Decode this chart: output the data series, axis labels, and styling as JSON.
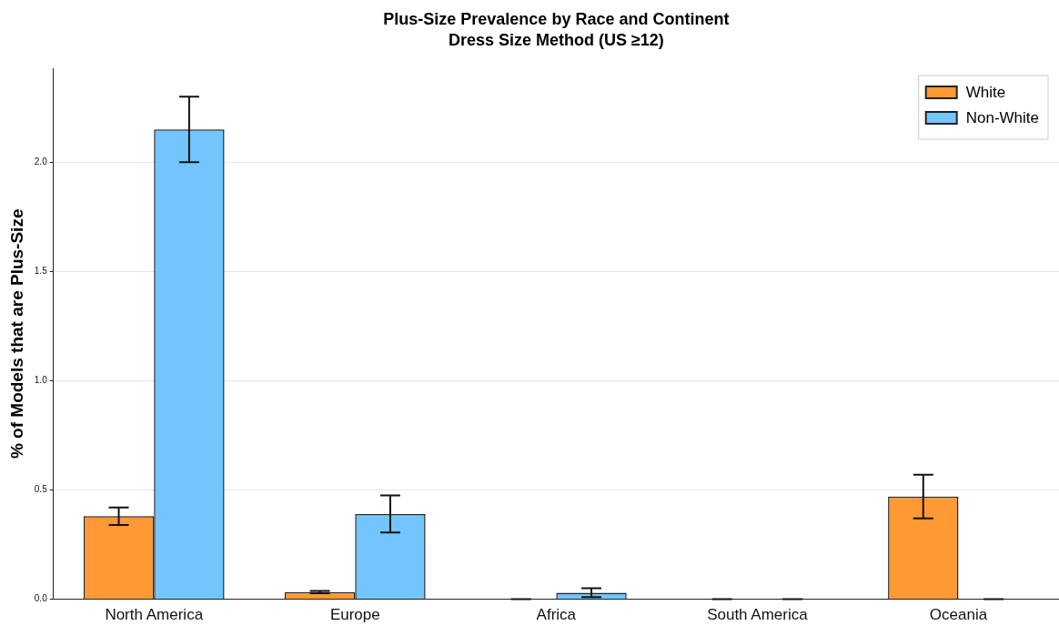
{
  "chart_data": {
    "type": "bar",
    "title": "Plus-Size Prevalence by Race and Continent",
    "subtitle": "Dress Size Method (US ≥12)",
    "ylabel": "% of Models that are Plus-Size",
    "categories": [
      "North America",
      "Europe",
      "Africa",
      "South America",
      "Oceania"
    ],
    "series": [
      {
        "name": "White",
        "color": "#ff9933",
        "values": [
          0.38,
          0.033,
          0,
          0,
          0.47
        ],
        "errors": [
          0.04,
          0.005,
          0,
          0,
          0.1
        ]
      },
      {
        "name": "Non-White",
        "color": "#73c6fd",
        "values": [
          2.15,
          0.39,
          0.03,
          0,
          0
        ],
        "errors": [
          0.15,
          0.085,
          0.02,
          0,
          0
        ]
      }
    ],
    "ylim": [
      0,
      2.43
    ],
    "yticks": [
      {
        "value": 0,
        "label": "0.0"
      },
      {
        "value": 0.5,
        "label": "0.5"
      },
      {
        "value": 1,
        "label": "1.0"
      },
      {
        "value": 1.5,
        "label": "1.5"
      },
      {
        "value": 2,
        "label": "2.0"
      }
    ],
    "grid": "y",
    "legend": "top right"
  }
}
